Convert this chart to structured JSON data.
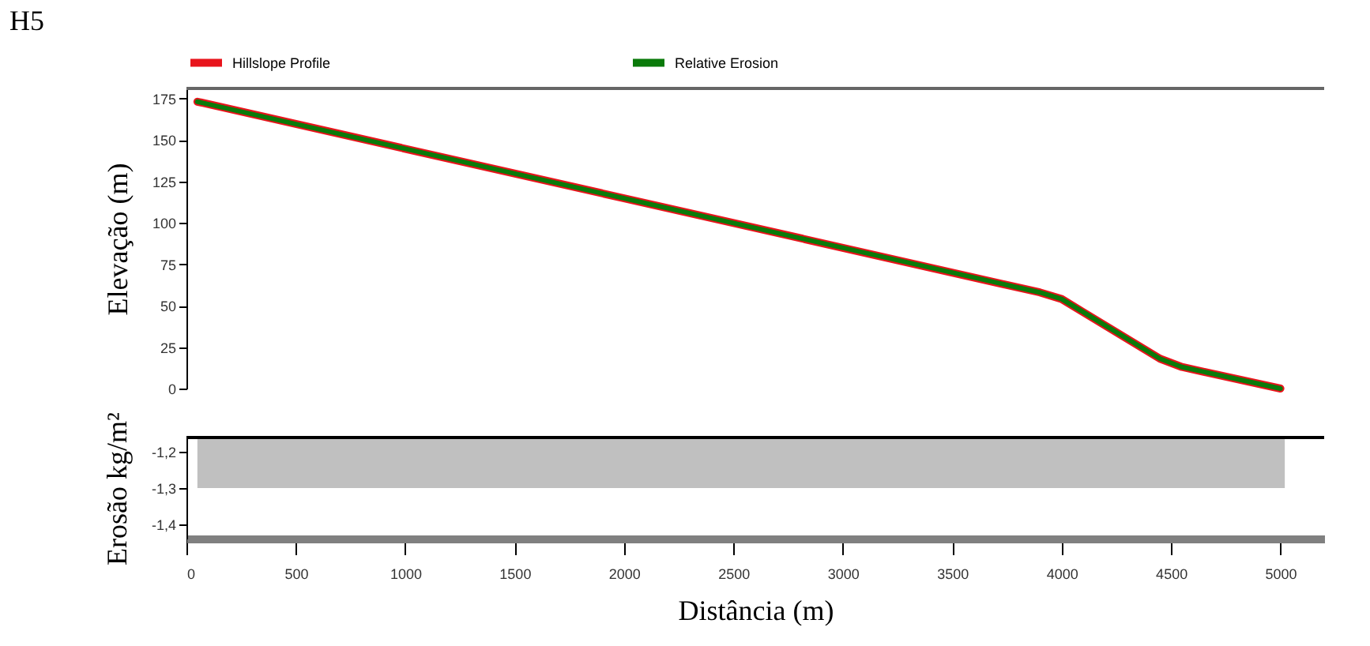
{
  "chart_data": [
    {
      "type": "line",
      "title": "H5",
      "ylabel": "Elevação (m)",
      "legend": "top",
      "tick_labels": "y",
      "x": [
        50,
        3900,
        4000,
        4100,
        4450,
        4550,
        5000
      ],
      "series": [
        {
          "name": "Hillslope Profile",
          "color": "#e8141c",
          "values": [
            173,
            58,
            54,
            46,
            18,
            13,
            0
          ]
        },
        {
          "name": "Relative Erosion",
          "color": "#0a7a0a",
          "values": [
            173,
            58,
            54,
            46,
            18,
            13,
            0
          ]
        }
      ],
      "xlim": [
        0,
        5200
      ],
      "ylim": [
        0,
        181
      ],
      "yticks": [
        0,
        25,
        50,
        75,
        100,
        125,
        150,
        175
      ]
    },
    {
      "type": "area",
      "ylabel": "Erosão kg/m²",
      "xlabel": "Distância (m)",
      "x": [
        50,
        5020
      ],
      "series": [
        {
          "color": "#c0c0c0",
          "values": [
            -1.3,
            -1.3
          ]
        }
      ],
      "xlim": [
        0,
        5200
      ],
      "xticks": [
        0,
        500,
        1000,
        1500,
        2000,
        2500,
        3000,
        3500,
        4000,
        4500,
        5000
      ],
      "ylim": [
        -1.44,
        -1.16
      ],
      "yticks": [
        {
          "value": -1.2,
          "label": "-1,2"
        },
        {
          "value": -1.3,
          "label": "-1,3"
        },
        {
          "value": -1.4,
          "label": "-1,4"
        }
      ]
    }
  ]
}
